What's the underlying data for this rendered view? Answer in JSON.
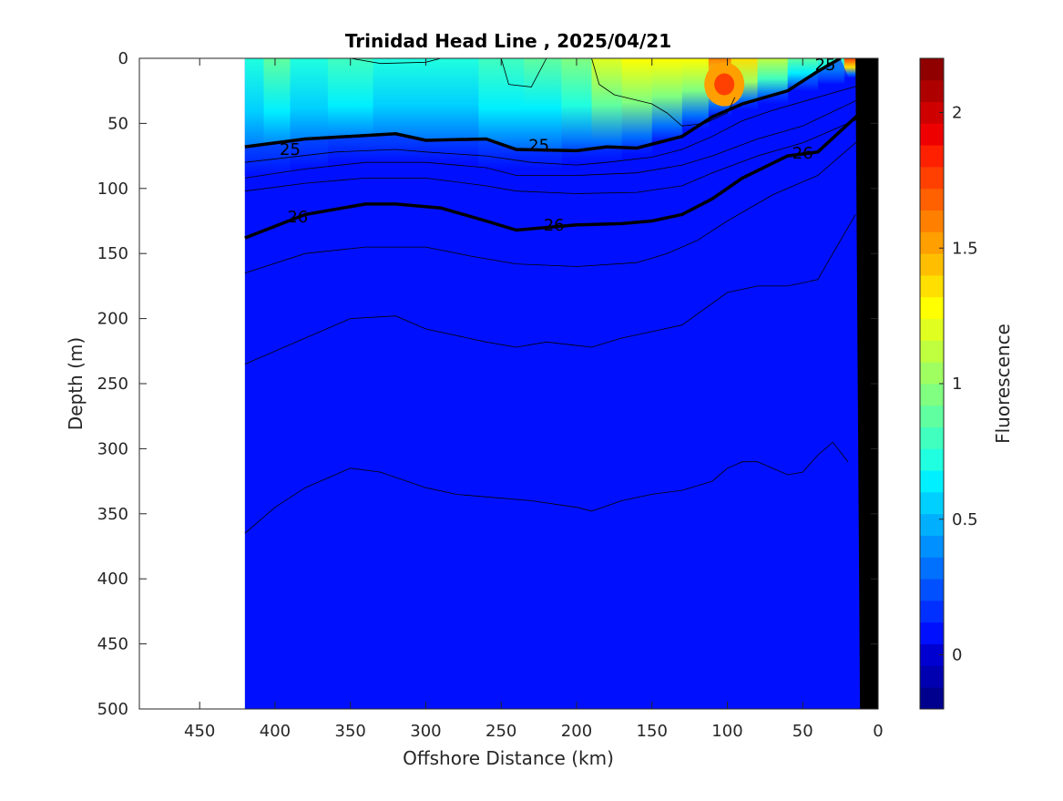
{
  "chart_data": {
    "type": "heatmap",
    "title": "Trinidad Head Line , 2025/04/21",
    "xlabel": "Offshore Distance (km)",
    "ylabel": "Depth (m)",
    "colorbar_label": "Fluorescence",
    "x_reversed": true,
    "y_reversed": true,
    "xlim": [
      0,
      490
    ],
    "ylim": [
      0,
      500
    ],
    "xticks": [
      450,
      400,
      350,
      300,
      250,
      200,
      150,
      100,
      50,
      0
    ],
    "yticks": [
      0,
      50,
      100,
      150,
      200,
      250,
      300,
      350,
      400,
      450,
      500
    ],
    "colorbar_range": [
      -0.2,
      2.2
    ],
    "colorbar_ticks": [
      0,
      0.5,
      1,
      1.5,
      2
    ],
    "colorbar_tick_labels": [
      "0",
      "0.5",
      "1",
      "1.5",
      "2"
    ],
    "colormap": [
      "#00008f",
      "#0000b0",
      "#0000d0",
      "#0010ff",
      "#0030ff",
      "#0050ff",
      "#0070ff",
      "#0090ff",
      "#00b0ff",
      "#00d0ff",
      "#00f0ff",
      "#20ffdf",
      "#40ffbf",
      "#60ff9f",
      "#80ff80",
      "#a0ff60",
      "#c0ff40",
      "#e0ff20",
      "#ffff00",
      "#ffdf00",
      "#ffbf00",
      "#ff9f00",
      "#ff8000",
      "#ff6000",
      "#ff4000",
      "#ff2000",
      "#ef0000",
      "#cf0000",
      "#af0000",
      "#900000"
    ],
    "data_extent_km": [
      10,
      420
    ],
    "near_surface_fluorescence": {
      "x": [
        415,
        400,
        380,
        350,
        320,
        300,
        280,
        250,
        220,
        200,
        180,
        160,
        140,
        120,
        105,
        90,
        70,
        50,
        30,
        15
      ],
      "surface_value": [
        0.7,
        0.9,
        0.7,
        0.8,
        0.75,
        0.7,
        0.75,
        0.8,
        0.85,
        1.0,
        1.2,
        1.3,
        1.25,
        1.3,
        1.6,
        1.4,
        1.1,
        0.9,
        0.8,
        1.8
      ],
      "layer_depth": [
        90,
        90,
        85,
        80,
        80,
        80,
        80,
        85,
        85,
        80,
        80,
        75,
        65,
        55,
        45,
        40,
        35,
        25,
        20,
        15
      ],
      "peak": {
        "x": 102,
        "depth": 20,
        "value": 1.8
      }
    },
    "contours": [
      {
        "label": "25",
        "bold": true,
        "x": [
          420,
          380,
          320,
          300,
          260,
          240,
          200,
          180,
          160,
          130,
          110,
          90,
          60,
          40,
          25
        ],
        "depth": [
          68,
          62,
          58,
          63,
          62,
          70,
          71,
          68,
          69,
          60,
          45,
          35,
          25,
          10,
          0
        ]
      },
      {
        "label": "26",
        "bold": true,
        "x": [
          420,
          380,
          340,
          320,
          290,
          260,
          240,
          200,
          170,
          150,
          130,
          110,
          90,
          60,
          40,
          10
        ],
        "depth": [
          138,
          120,
          112,
          112,
          115,
          125,
          132,
          128,
          127,
          125,
          120,
          108,
          92,
          75,
          72,
          40
        ]
      },
      {
        "label": "",
        "bold": false,
        "x": [
          420,
          360,
          320,
          300,
          260,
          230,
          200,
          180,
          150,
          130,
          110,
          90,
          70,
          40,
          10
        ],
        "depth": [
          80,
          72,
          70,
          72,
          75,
          80,
          82,
          80,
          76,
          70,
          60,
          48,
          40,
          30,
          20
        ]
      },
      {
        "label": "",
        "bold": false,
        "x": [
          420,
          380,
          340,
          300,
          260,
          240,
          200,
          160,
          130,
          110,
          80,
          50,
          10
        ],
        "depth": [
          92,
          85,
          80,
          80,
          84,
          90,
          90,
          88,
          82,
          75,
          62,
          52,
          30
        ]
      },
      {
        "label": "",
        "bold": false,
        "x": [
          420,
          380,
          340,
          300,
          260,
          240,
          200,
          160,
          130,
          110,
          80,
          50,
          10
        ],
        "depth": [
          102,
          96,
          92,
          92,
          98,
          102,
          104,
          103,
          98,
          88,
          75,
          65,
          45
        ]
      },
      {
        "label": "",
        "bold": false,
        "x": [
          420,
          380,
          340,
          300,
          270,
          240,
          200,
          160,
          140,
          120,
          100,
          70,
          40,
          10
        ],
        "depth": [
          165,
          150,
          145,
          145,
          152,
          158,
          160,
          157,
          150,
          140,
          125,
          105,
          90,
          60
        ]
      },
      {
        "label": "",
        "bold": false,
        "x": [
          420,
          380,
          350,
          320,
          300,
          260,
          240,
          220,
          190,
          170,
          150,
          130,
          100,
          80,
          60,
          40,
          30,
          15
        ],
        "depth": [
          235,
          215,
          200,
          198,
          208,
          218,
          222,
          218,
          222,
          215,
          210,
          205,
          180,
          175,
          175,
          170,
          150,
          120
        ]
      },
      {
        "label": "",
        "bold": false,
        "x": [
          420,
          400,
          380,
          350,
          330,
          300,
          280,
          250,
          230,
          200,
          190,
          170,
          150,
          130,
          110,
          100,
          90,
          80,
          70,
          60,
          50,
          40,
          30,
          20
        ],
        "depth": [
          365,
          345,
          330,
          315,
          318,
          330,
          335,
          338,
          340,
          345,
          348,
          340,
          335,
          332,
          325,
          315,
          310,
          310,
          315,
          320,
          318,
          305,
          295,
          310
        ]
      }
    ],
    "surface_contours": [
      {
        "x": [
          350,
          330,
          300,
          290
        ],
        "depth": [
          0,
          4,
          3,
          0
        ]
      },
      {
        "x": [
          250,
          245,
          230,
          220
        ],
        "depth": [
          0,
          20,
          22,
          0
        ]
      },
      {
        "x": [
          190,
          185,
          175,
          150,
          140,
          130,
          115,
          100,
          95
        ],
        "depth": [
          0,
          20,
          28,
          35,
          42,
          52,
          50,
          42,
          30
        ]
      }
    ],
    "bathymetry": {
      "x": [
        15,
        0,
        0,
        12
      ],
      "depth": [
        0,
        0,
        500,
        500
      ]
    }
  }
}
